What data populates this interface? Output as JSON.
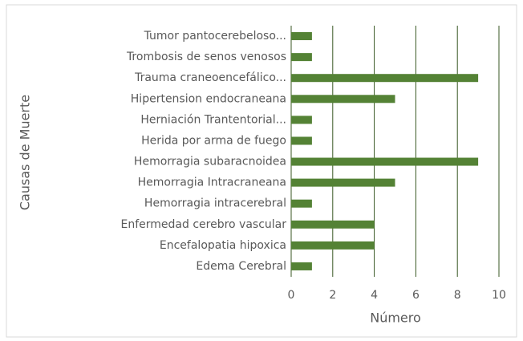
{
  "chart_data": {
    "type": "bar",
    "orientation": "horizontal",
    "categories": [
      "Tumor pantocerebeloso...",
      "Trombosis de senos venosos",
      "Trauma craneoencefálico...",
      "Hipertension endocraneana",
      "Herniación Trantentorial...",
      "Herida por arma de fuego",
      "Hemorragia subaracnoidea",
      "Hemorragia Intracraneana",
      "Hemorragia intracerebral",
      "Enfermedad cerebro vascular",
      "Encefalopatia hipoxica",
      "Edema Cerebral"
    ],
    "values": [
      1,
      1,
      9,
      5,
      1,
      1,
      9,
      5,
      1,
      4,
      4,
      1
    ],
    "color": "#548235",
    "xlim": [
      0,
      10
    ],
    "xticks": [
      0,
      2,
      4,
      6,
      8,
      10
    ],
    "grid": true,
    "xlabel": "Número",
    "ylabel": "Causas de Muerte"
  }
}
